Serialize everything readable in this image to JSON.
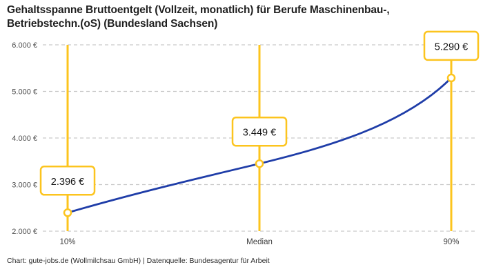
{
  "title": "Gehaltsspanne Bruttoentgelt (Vollzeit, monatlich) für Berufe Maschinenbau-, Betriebstechn.(oS) (Bundesland Sachsen)",
  "footer": "Chart: gute-jobs.de (Wollmilchsau GmbH) | Datenquelle: Bundesagentur für Arbeit",
  "colors": {
    "accent_yellow": "#FCC41E",
    "line_blue": "#1F3DA8",
    "grid": "#C9C9C9",
    "title_text": "#1F1F1F",
    "axis_text": "#4D4D4D",
    "x_axis_text": "#3F3F3F",
    "label_text": "#141414",
    "background": "#FFFFFF",
    "marker_fill": "#FFFFFF"
  },
  "chart_data": {
    "type": "line",
    "title": "Gehaltsspanne Bruttoentgelt (Vollzeit, monatlich) für Berufe Maschinenbau-, Betriebstechn.(oS) (Bundesland Sachsen)",
    "categories": [
      "10%",
      "Median",
      "90%"
    ],
    "values": [
      2396,
      3449,
      5290
    ],
    "value_labels": [
      "2.396 €",
      "3.449 €",
      "5.290 €"
    ],
    "y_tick_values": [
      2000,
      3000,
      4000,
      5000,
      6000
    ],
    "y_tick_labels": [
      "2.000 €",
      "3.000 €",
      "4.000 €",
      "5.000 €",
      "6.000 €"
    ],
    "ylim": [
      2000,
      6000
    ],
    "xlabel": "",
    "ylabel": "",
    "grid": "horizontal-dashed",
    "legend": "none",
    "annotations": "vertical highlight line with framed value label at each percentile",
    "source": "Bundesagentur für Arbeit"
  }
}
